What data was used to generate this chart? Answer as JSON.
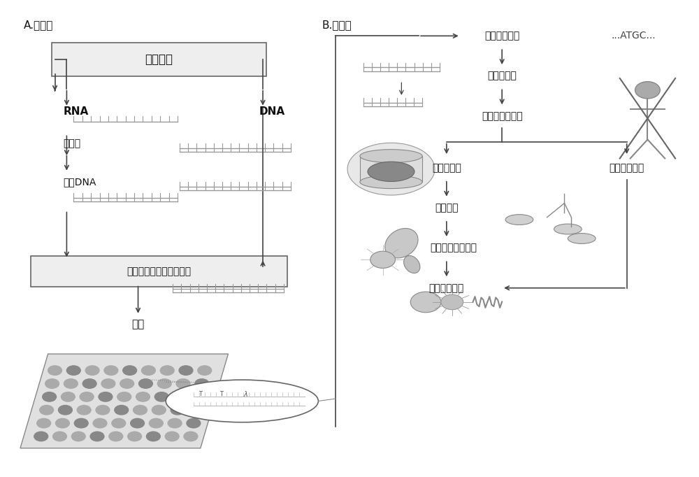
{
  "bg_color": "#ffffff",
  "section_a_label": "A.湿实验",
  "section_b_label": "B.干实验",
  "left_box1": "核酸提取",
  "left_box2": "测序文库制备（加接头）",
  "rna_label": "RNA",
  "dna_label": "DNA",
  "fanzhuan_label": "反转录",
  "hubu_label": "互补DNA",
  "cexu_label": "测序",
  "dry_label1": "原始测序数据",
  "dry_label2": "数据前处理",
  "dry_label3": "去除人宿主序列",
  "dry_label4": "微生物比对",
  "dry_label5": "物种注释",
  "dry_label6": "微生物鉴定及过滤",
  "dry_label7": "潜在病原鉴定",
  "dry_label8": "耐药基因鉴定",
  "atgc_text": "...ATGC...",
  "box_fill": "#eeeeee",
  "box_edge": "#666666",
  "text_color": "#111111",
  "arrow_color": "#444444",
  "line_color": "#444444",
  "strand_color": "#999999",
  "gray_icon": "#aaaaaa"
}
